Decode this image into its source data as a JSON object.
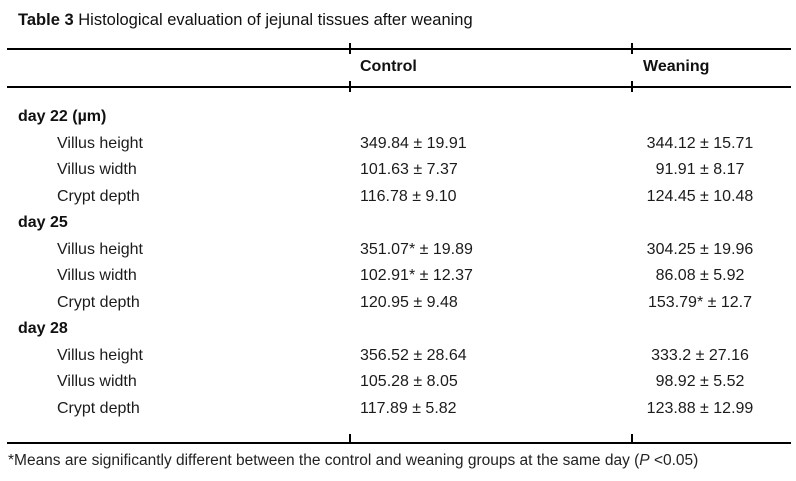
{
  "title": {
    "label": "Table 3",
    "text": "Histological evaluation of jejunal tissues after weaning"
  },
  "columns": {
    "control": "Control",
    "weaning": "Weaning"
  },
  "sections": [
    {
      "label": "day 22 (µm)",
      "rows": [
        {
          "name": "Villus height",
          "control": "349.84 ± 19.91",
          "weaning": "344.12 ± 15.71"
        },
        {
          "name": "Villus width",
          "control": "101.63 ± 7.37",
          "weaning": "91.91 ± 8.17"
        },
        {
          "name": "Crypt depth",
          "control": "116.78 ± 9.10",
          "weaning": "124.45 ± 10.48"
        }
      ]
    },
    {
      "label": "day 25",
      "rows": [
        {
          "name": "Villus height",
          "control": "351.07* ± 19.89",
          "weaning": "304.25 ± 19.96"
        },
        {
          "name": "Villus width",
          "control": "102.91* ± 12.37",
          "weaning": "86.08 ± 5.92"
        },
        {
          "name": "Crypt depth",
          "control": "120.95 ± 9.48",
          "weaning": "153.79* ± 12.7"
        }
      ]
    },
    {
      "label": "day 28",
      "rows": [
        {
          "name": "Villus height",
          "control": "356.52 ± 28.64",
          "weaning": "333.2 ± 27.16"
        },
        {
          "name": "Villus width",
          "control": "105.28 ± 8.05",
          "weaning": "98.92 ± 5.52"
        },
        {
          "name": "Crypt depth",
          "control": "117.89 ± 5.82",
          "weaning": "123.88 ± 12.99"
        }
      ]
    }
  ],
  "footnote": {
    "prefix": "*Means are significantly different between the control and weaning groups at the same day (",
    "p": "P",
    "suffix": " <0.05)"
  }
}
